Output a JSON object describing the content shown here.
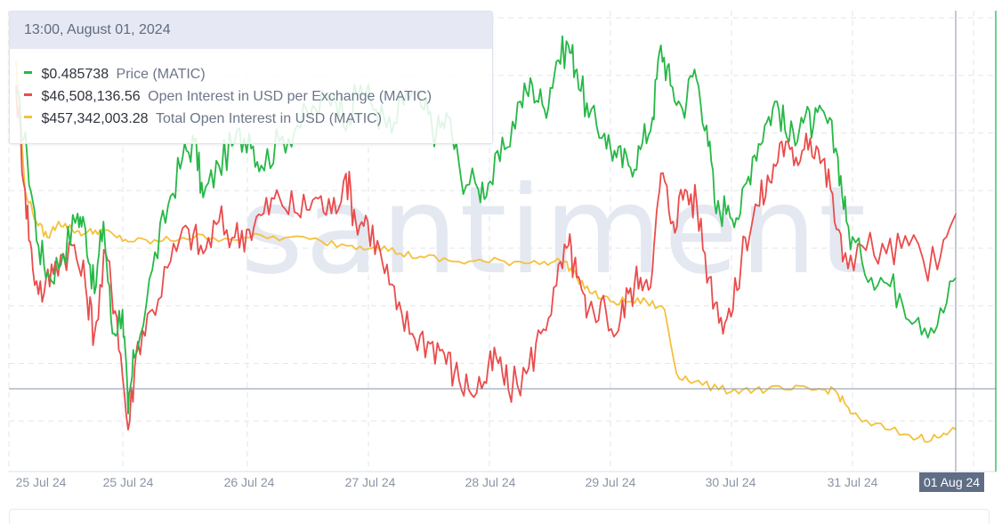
{
  "watermark": "santiment",
  "tooltip": {
    "datetime": "13:00, August 01, 2024",
    "rows": [
      {
        "value": "$0.485738",
        "label": "Price (MATIC)",
        "color": "#26b846"
      },
      {
        "value": "$46,508,136.56",
        "label": "Open Interest in USD per Exchange (MATIC)",
        "color": "#ea4c4c"
      },
      {
        "value": "$457,342,003.28",
        "label": "Total Open Interest in USD (MATIC)",
        "color": "#f4c13c"
      }
    ]
  },
  "date_label": "01 Aug 24",
  "chart_data": {
    "type": "line",
    "x_ticks": [
      "25 Jul 24",
      "25 Jul 24",
      "26 Jul 24",
      "27 Jul 24",
      "28 Jul 24",
      "29 Jul 24",
      "30 Jul 24",
      "31 Jul 24",
      "01 Aug 24"
    ],
    "grid": true,
    "legend": "none",
    "x_range": [
      0,
      7.6
    ],
    "x_unit": "days from 25 Jul 00:00",
    "series": [
      {
        "name": "Price (MATIC)",
        "color": "#26b846",
        "scale": [
          0,
          100
        ],
        "points": [
          [
            0,
            90
          ],
          [
            0.1,
            74
          ],
          [
            0.2,
            52
          ],
          [
            0.3,
            44
          ],
          [
            0.42,
            50
          ],
          [
            0.55,
            60
          ],
          [
            0.62,
            56
          ],
          [
            0.7,
            40
          ],
          [
            0.78,
            58
          ],
          [
            0.86,
            30
          ],
          [
            0.95,
            36
          ],
          [
            1.0,
            10
          ],
          [
            1.05,
            24
          ],
          [
            1.2,
            46
          ],
          [
            1.33,
            62
          ],
          [
            1.45,
            74
          ],
          [
            1.55,
            78
          ],
          [
            1.62,
            64
          ],
          [
            1.75,
            72
          ],
          [
            1.88,
            78
          ],
          [
            2.0,
            80
          ],
          [
            2.1,
            72
          ],
          [
            2.25,
            78
          ],
          [
            2.4,
            82
          ],
          [
            2.55,
            86
          ],
          [
            2.7,
            90
          ],
          [
            2.82,
            84
          ],
          [
            2.92,
            92
          ],
          [
            3.05,
            86
          ],
          [
            3.18,
            80
          ],
          [
            3.3,
            90
          ],
          [
            3.45,
            86
          ],
          [
            3.55,
            80
          ],
          [
            3.65,
            84
          ],
          [
            3.75,
            70
          ],
          [
            3.9,
            66
          ],
          [
            4.0,
            68
          ],
          [
            4.12,
            76
          ],
          [
            4.25,
            88
          ],
          [
            4.35,
            92
          ],
          [
            4.45,
            86
          ],
          [
            4.55,
            98
          ],
          [
            4.65,
            102
          ],
          [
            4.72,
            96
          ],
          [
            4.82,
            84
          ],
          [
            4.95,
            80
          ],
          [
            5.05,
            74
          ],
          [
            5.15,
            72
          ],
          [
            5.25,
            76
          ],
          [
            5.35,
            84
          ],
          [
            5.42,
            102
          ],
          [
            5.5,
            92
          ],
          [
            5.6,
            86
          ],
          [
            5.7,
            96
          ],
          [
            5.8,
            82
          ],
          [
            5.88,
            60
          ],
          [
            5.98,
            62
          ],
          [
            6.08,
            60
          ],
          [
            6.18,
            74
          ],
          [
            6.28,
            82
          ],
          [
            6.38,
            88
          ],
          [
            6.48,
            78
          ],
          [
            6.58,
            84
          ],
          [
            6.68,
            82
          ],
          [
            6.78,
            84
          ],
          [
            6.88,
            74
          ],
          [
            6.95,
            58
          ],
          [
            7.05,
            48
          ],
          [
            7.15,
            44
          ],
          [
            7.25,
            40
          ],
          [
            7.35,
            34
          ],
          [
            7.45,
            32
          ],
          [
            7.55,
            44
          ]
        ]
      },
      {
        "name": "Open Interest in USD per Exchange (MATIC)",
        "color": "#ea4c4c",
        "scale": [
          0,
          100
        ],
        "points": [
          [
            0,
            92
          ],
          [
            0.08,
            66
          ],
          [
            0.15,
            46
          ],
          [
            0.25,
            40
          ],
          [
            0.35,
            48
          ],
          [
            0.5,
            52
          ],
          [
            0.62,
            42
          ],
          [
            0.7,
            30
          ],
          [
            0.8,
            50
          ],
          [
            0.9,
            34
          ],
          [
            1.0,
            6
          ],
          [
            1.08,
            28
          ],
          [
            1.2,
            36
          ],
          [
            1.35,
            48
          ],
          [
            1.5,
            56
          ],
          [
            1.62,
            50
          ],
          [
            1.75,
            58
          ],
          [
            1.88,
            54
          ],
          [
            2.0,
            56
          ],
          [
            2.12,
            60
          ],
          [
            2.25,
            64
          ],
          [
            2.4,
            60
          ],
          [
            2.55,
            64
          ],
          [
            2.68,
            60
          ],
          [
            2.8,
            70
          ],
          [
            2.88,
            58
          ],
          [
            2.98,
            58
          ],
          [
            3.1,
            48
          ],
          [
            3.22,
            36
          ],
          [
            3.35,
            30
          ],
          [
            3.48,
            28
          ],
          [
            3.6,
            26
          ],
          [
            3.7,
            20
          ],
          [
            3.82,
            16
          ],
          [
            3.95,
            18
          ],
          [
            4.05,
            24
          ],
          [
            4.15,
            16
          ],
          [
            4.3,
            20
          ],
          [
            4.42,
            30
          ],
          [
            4.55,
            42
          ],
          [
            4.65,
            52
          ],
          [
            4.72,
            44
          ],
          [
            4.8,
            34
          ],
          [
            4.92,
            38
          ],
          [
            5.05,
            30
          ],
          [
            5.15,
            40
          ],
          [
            5.25,
            44
          ],
          [
            5.35,
            46
          ],
          [
            5.42,
            70
          ],
          [
            5.52,
            58
          ],
          [
            5.62,
            66
          ],
          [
            5.72,
            62
          ],
          [
            5.82,
            44
          ],
          [
            5.92,
            34
          ],
          [
            6.02,
            36
          ],
          [
            6.12,
            54
          ],
          [
            6.22,
            62
          ],
          [
            6.32,
            68
          ],
          [
            6.42,
            78
          ],
          [
            6.52,
            72
          ],
          [
            6.62,
            80
          ],
          [
            6.72,
            76
          ],
          [
            6.82,
            66
          ],
          [
            6.92,
            48
          ],
          [
            7.05,
            52
          ],
          [
            7.18,
            50
          ],
          [
            7.3,
            52
          ],
          [
            7.45,
            46
          ],
          [
            7.55,
            60
          ]
        ]
      },
      {
        "name": "Total Open Interest in USD (MATIC)",
        "color": "#f4c13c",
        "scale": [
          0,
          100
        ],
        "points": [
          [
            0,
            98
          ],
          [
            0.08,
            66
          ],
          [
            0.18,
            58
          ],
          [
            0.28,
            54
          ],
          [
            0.38,
            58
          ],
          [
            0.5,
            56
          ],
          [
            0.62,
            55
          ],
          [
            0.75,
            56
          ],
          [
            0.9,
            54
          ],
          [
            1.05,
            53
          ],
          [
            1.25,
            53
          ],
          [
            1.45,
            54
          ],
          [
            1.7,
            54
          ],
          [
            2.0,
            54
          ],
          [
            2.3,
            54
          ],
          [
            2.6,
            53
          ],
          [
            2.85,
            52
          ],
          [
            3.05,
            52
          ],
          [
            3.25,
            50
          ],
          [
            3.45,
            49
          ],
          [
            3.7,
            48
          ],
          [
            3.95,
            48
          ],
          [
            4.2,
            48
          ],
          [
            4.45,
            48
          ],
          [
            4.62,
            48
          ],
          [
            4.72,
            44
          ],
          [
            4.85,
            40
          ],
          [
            5.0,
            38
          ],
          [
            5.15,
            38
          ],
          [
            5.3,
            38
          ],
          [
            5.45,
            36
          ],
          [
            5.55,
            20
          ],
          [
            5.7,
            18
          ],
          [
            5.9,
            16
          ],
          [
            6.1,
            16
          ],
          [
            6.3,
            16
          ],
          [
            6.5,
            16
          ],
          [
            6.7,
            16
          ],
          [
            6.85,
            16
          ],
          [
            6.95,
            12
          ],
          [
            7.05,
            8
          ],
          [
            7.2,
            6
          ],
          [
            7.35,
            4
          ],
          [
            7.45,
            4
          ],
          [
            7.55,
            6
          ]
        ]
      }
    ]
  }
}
